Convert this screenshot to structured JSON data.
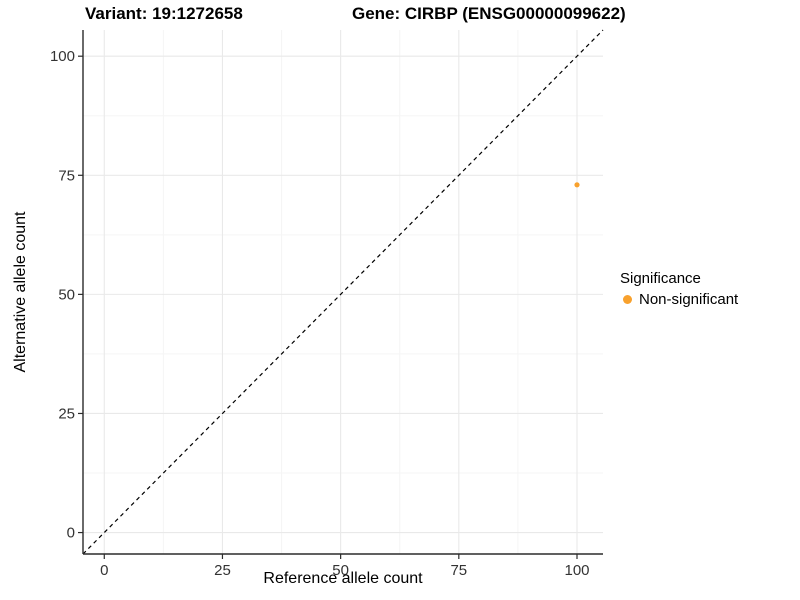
{
  "chart_data": {
    "type": "scatter",
    "title_left": "Variant: 19:1272658",
    "title_right": "Gene: CIRBP (ENSG00000099622)",
    "xlabel": "Reference allele count",
    "ylabel": "Alternative allele count",
    "xlim": [
      -4.5,
      105.5
    ],
    "ylim": [
      -4.5,
      105.5
    ],
    "xticks": [
      0,
      25,
      50,
      75,
      100
    ],
    "yticks": [
      0,
      25,
      50,
      75,
      100
    ],
    "grid": "major+minor",
    "identity_line": {
      "from": [
        -4.5,
        -4.5
      ],
      "to": [
        105.5,
        105.5
      ],
      "style": "dashed",
      "color": "#000000"
    },
    "points": [
      {
        "x": 100,
        "y": 73,
        "series": "Non-significant"
      }
    ],
    "series_colors": {
      "Non-significant": "#F8A12D"
    },
    "point_radius": 2.6,
    "legend": {
      "title": "Significance",
      "position": "right",
      "entries": [
        {
          "label": "Non-significant",
          "color": "#F8A12D",
          "icon": "circle-point-icon"
        }
      ]
    }
  },
  "colors": {
    "background": "#FFFFFF",
    "grid_major": "#E9E9E9",
    "grid_minor": "#F5F5F5",
    "axis_line": "#2B2B2B",
    "tick_label": "#333333",
    "title_text": "#000000",
    "point_orange": "#F8A12D"
  }
}
